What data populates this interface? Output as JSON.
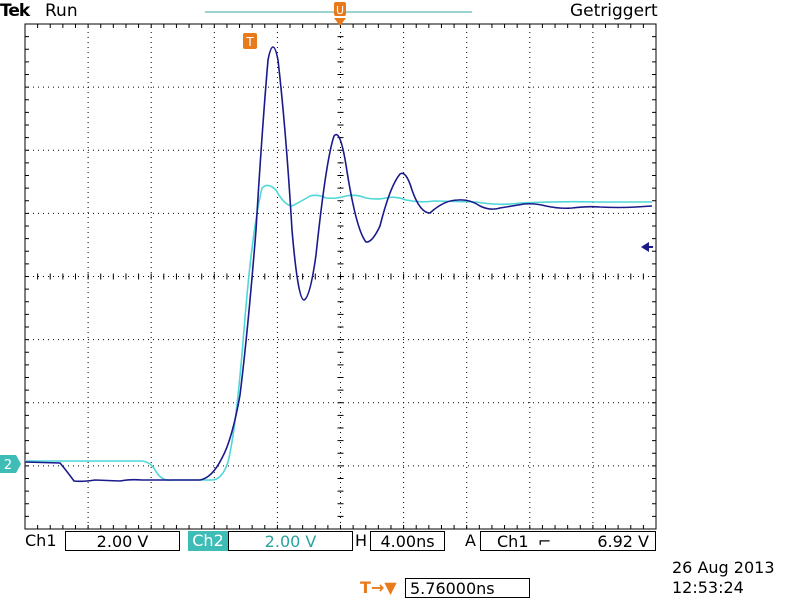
{
  "header": {
    "brand": "Tek",
    "acquisition_state": "Run",
    "trigger_status": "Getriggert"
  },
  "markers": {
    "trigger_marker": "T",
    "trigger_position_marker": "U",
    "ch2_marker": "2",
    "trigger_level_marker": "←"
  },
  "status_bar": {
    "ch1_label": "Ch1",
    "ch1_scale": "2.00 V",
    "ch2_label": "Ch2",
    "ch2_scale": "2.00 V",
    "horizontal_label": "H",
    "horizontal_scale": "4.00ns",
    "trigger_label": "A",
    "trigger_source": "Ch1",
    "trigger_slope_symbol": "⌐",
    "trigger_level": "6.92 V"
  },
  "trigger_position": {
    "icon": "T→▼",
    "value": "5.76000ns"
  },
  "timestamp": {
    "date": "26 Aug 2013",
    "time": "12:53:24"
  },
  "colors": {
    "ch1": "#1a1a8c",
    "ch2": "#4fd7d7",
    "accent": "#e87a1c",
    "ch2_label_bg": "#3dbdb6"
  }
}
